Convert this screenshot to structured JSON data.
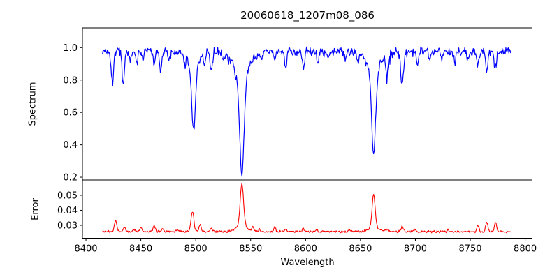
{
  "chart_data": [
    {
      "type": "line",
      "title": "20060618_1207m08_086",
      "ylabel": "Spectrum",
      "line_color": "#0000ff",
      "xlim": [
        8396.8,
        8806.3
      ],
      "ylim": [
        0.183,
        1.122
      ],
      "yticks": [
        "0.2",
        "0.4",
        "0.6",
        "0.8",
        "1.0"
      ],
      "x_start": 8415,
      "x_end": 8787,
      "x_step": 0.55,
      "continuum": 0.978,
      "noise_amplitude": 0.032,
      "absorption_lines": [
        {
          "center": 8424,
          "depth": 0.2,
          "sigma": 1.0
        },
        {
          "center": 8434,
          "depth": 0.21,
          "sigma": 1.0
        },
        {
          "center": 8440,
          "depth": 0.06,
          "sigma": 0.9
        },
        {
          "center": 8446,
          "depth": 0.07,
          "sigma": 0.9
        },
        {
          "center": 8452,
          "depth": 0.05,
          "sigma": 0.9
        },
        {
          "center": 8462,
          "depth": 0.07,
          "sigma": 1.0
        },
        {
          "center": 8468,
          "depth": 0.12,
          "sigma": 1.0
        },
        {
          "center": 8476,
          "depth": 0.05,
          "sigma": 0.9
        },
        {
          "center": 8490,
          "depth": 0.05,
          "sigma": 0.9
        },
        {
          "center": 8498,
          "depth": 0.4,
          "sigma": 1.6,
          "wing_depth": 0.1,
          "wing_sigma": 5
        },
        {
          "center": 8508,
          "depth": 0.07,
          "sigma": 0.9
        },
        {
          "center": 8514,
          "depth": 0.13,
          "sigma": 1.0
        },
        {
          "center": 8525,
          "depth": 0.05,
          "sigma": 0.9
        },
        {
          "center": 8536,
          "depth": 0.05,
          "sigma": 0.9
        },
        {
          "center": 8542,
          "depth": 0.6,
          "sigma": 2.0,
          "wing_depth": 0.155,
          "wing_sigma": 7
        },
        {
          "center": 8560,
          "depth": 0.05,
          "sigma": 0.9
        },
        {
          "center": 8572,
          "depth": 0.06,
          "sigma": 0.9
        },
        {
          "center": 8582,
          "depth": 0.1,
          "sigma": 1.0
        },
        {
          "center": 8598,
          "depth": 0.1,
          "sigma": 1.0
        },
        {
          "center": 8611,
          "depth": 0.07,
          "sigma": 0.9
        },
        {
          "center": 8621,
          "depth": 0.06,
          "sigma": 0.9
        },
        {
          "center": 8636,
          "depth": 0.05,
          "sigma": 0.9
        },
        {
          "center": 8648,
          "depth": 0.05,
          "sigma": 0.9
        },
        {
          "center": 8662,
          "depth": 0.5,
          "sigma": 1.8,
          "wing_depth": 0.125,
          "wing_sigma": 6
        },
        {
          "center": 8674,
          "depth": 0.13,
          "sigma": 1.0
        },
        {
          "center": 8688,
          "depth": 0.22,
          "sigma": 1.2
        },
        {
          "center": 8702,
          "depth": 0.08,
          "sigma": 0.9
        },
        {
          "center": 8713,
          "depth": 0.06,
          "sigma": 0.9
        },
        {
          "center": 8724,
          "depth": 0.05,
          "sigma": 0.9
        },
        {
          "center": 8736,
          "depth": 0.06,
          "sigma": 0.9
        },
        {
          "center": 8748,
          "depth": 0.05,
          "sigma": 0.9
        },
        {
          "center": 8757,
          "depth": 0.09,
          "sigma": 1.0
        },
        {
          "center": 8765,
          "depth": 0.11,
          "sigma": 1.0
        },
        {
          "center": 8773,
          "depth": 0.09,
          "sigma": 1.0
        }
      ]
    },
    {
      "type": "line",
      "ylabel": "Error",
      "xlabel": "Wavelength",
      "line_color": "#ff0000",
      "xlim": [
        8396.8,
        8806.3
      ],
      "ylim": [
        0.0214,
        0.0602
      ],
      "yticks": [
        "0.03",
        "0.04",
        "0.05"
      ],
      "xticks": [
        "8400",
        "8450",
        "8500",
        "8550",
        "8600",
        "8650",
        "8700",
        "8750",
        "8800"
      ],
      "x_start": 8415,
      "x_end": 8787,
      "x_step": 0.55,
      "baseline": 0.0258,
      "noise_amplitude": 0.0009,
      "peaks": [
        {
          "center": 8427,
          "height": 0.0075,
          "sigma": 1.1
        },
        {
          "center": 8435,
          "height": 0.003,
          "sigma": 1.0
        },
        {
          "center": 8444,
          "height": 0.0015,
          "sigma": 0.9
        },
        {
          "center": 8450,
          "height": 0.0032,
          "sigma": 1.0
        },
        {
          "center": 8462,
          "height": 0.0038,
          "sigma": 1.0
        },
        {
          "center": 8470,
          "height": 0.002,
          "sigma": 0.9
        },
        {
          "center": 8483,
          "height": 0.0012,
          "sigma": 0.9
        },
        {
          "center": 8497,
          "height": 0.0135,
          "sigma": 1.3
        },
        {
          "center": 8504,
          "height": 0.005,
          "sigma": 1.0
        },
        {
          "center": 8514,
          "height": 0.0022,
          "sigma": 0.9
        },
        {
          "center": 8542,
          "height": 0.028,
          "sigma": 1.5,
          "wing_height": 0.004,
          "wing_sigma": 5
        },
        {
          "center": 8552,
          "height": 0.0025,
          "sigma": 0.9
        },
        {
          "center": 8558,
          "height": 0.0018,
          "sigma": 0.9
        },
        {
          "center": 8572,
          "height": 0.0028,
          "sigma": 0.9
        },
        {
          "center": 8582,
          "height": 0.0018,
          "sigma": 0.9
        },
        {
          "center": 8598,
          "height": 0.002,
          "sigma": 0.9
        },
        {
          "center": 8610,
          "height": 0.0015,
          "sigma": 0.9
        },
        {
          "center": 8640,
          "height": 0.0012,
          "sigma": 0.9
        },
        {
          "center": 8662,
          "height": 0.0225,
          "sigma": 1.4,
          "wing_height": 0.0025,
          "wing_sigma": 5
        },
        {
          "center": 8674,
          "height": 0.0015,
          "sigma": 0.9
        },
        {
          "center": 8688,
          "height": 0.0038,
          "sigma": 1.0
        },
        {
          "center": 8700,
          "height": 0.0015,
          "sigma": 0.9
        },
        {
          "center": 8730,
          "height": 0.0012,
          "sigma": 0.9
        },
        {
          "center": 8757,
          "height": 0.0042,
          "sigma": 1.0
        },
        {
          "center": 8765,
          "height": 0.0062,
          "sigma": 1.1
        },
        {
          "center": 8773,
          "height": 0.0058,
          "sigma": 1.1
        }
      ]
    }
  ]
}
